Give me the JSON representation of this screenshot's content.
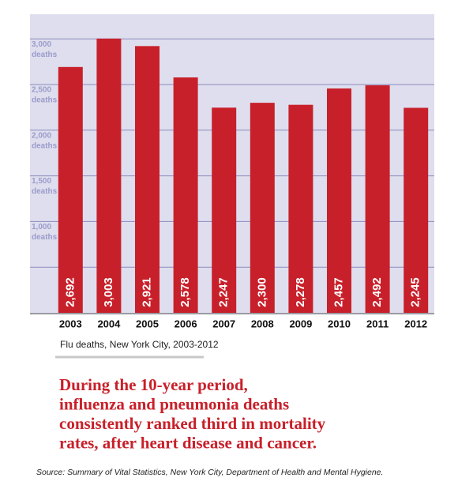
{
  "chart_data": {
    "type": "bar",
    "categories": [
      "2003",
      "2004",
      "2005",
      "2006",
      "2007",
      "2008",
      "2009",
      "2010",
      "2011",
      "2012"
    ],
    "values": [
      2692,
      3003,
      2921,
      2578,
      2247,
      2300,
      2278,
      2457,
      2492,
      2245
    ],
    "value_labels": [
      "2,692",
      "3,003",
      "2,921",
      "2,578",
      "2,247",
      "2,300",
      "2,278",
      "2,457",
      "2,492",
      "2,245"
    ],
    "color": "#c8202a",
    "ylim": [
      0,
      3270
    ],
    "yticks": [
      {
        "value": 500,
        "label": null
      },
      {
        "value": 1000,
        "label": "1,000"
      },
      {
        "value": 1500,
        "label": "1,500"
      },
      {
        "value": 2000,
        "label": "2,000"
      },
      {
        "value": 2500,
        "label": "2,500"
      },
      {
        "value": 3000,
        "label": "3,000"
      }
    ],
    "y_unit": "deaths",
    "grid": true,
    "caption": "Flu deaths, New York City, 2003-2012",
    "headline": [
      "During the 10-year period,",
      "influenza and pneumonia deaths",
      "consistently ranked third in mortality",
      "rates, after heart disease and cancer."
    ],
    "source": "Source: Summary of Vital Statistics, New York City, Department of Health and Mental Hygiene."
  }
}
